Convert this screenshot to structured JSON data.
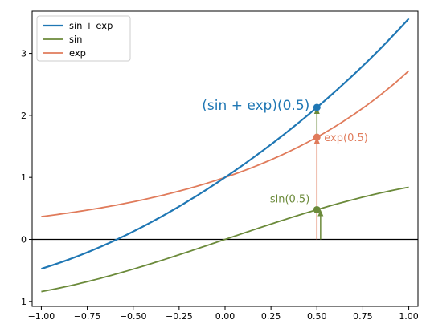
{
  "chart_data": {
    "type": "line",
    "title": "",
    "xlabel": "",
    "ylabel": "",
    "xlim": [
      -1.05,
      1.05
    ],
    "ylim": [
      -1.08,
      3.68
    ],
    "grid": false,
    "legend_position": "top-left",
    "x_ticks": [
      "−1.00",
      "−0.75",
      "−0.50",
      "−0.25",
      "0.00",
      "0.25",
      "0.50",
      "0.75",
      "1.00"
    ],
    "x_tick_values": [
      -1.0,
      -0.75,
      -0.5,
      -0.25,
      0.0,
      0.25,
      0.5,
      0.75,
      1.0
    ],
    "y_ticks": [
      "−1",
      "0",
      "1",
      "2",
      "3"
    ],
    "y_tick_values": [
      -1,
      0,
      1,
      2,
      3
    ],
    "series": [
      {
        "name": "sin + exp",
        "color": "#1f77b4",
        "x": [
          -1.0,
          -0.75,
          -0.5,
          -0.25,
          0.0,
          0.25,
          0.5,
          0.75,
          1.0
        ],
        "y": [
          -0.474,
          -0.209,
          0.127,
          0.531,
          1.0,
          1.532,
          2.128,
          2.799,
          3.56
        ]
      },
      {
        "name": "sin",
        "color": "#6b8a3a",
        "x": [
          -1.0,
          -0.75,
          -0.5,
          -0.25,
          0.0,
          0.25,
          0.5,
          0.75,
          1.0
        ],
        "y": [
          -0.841,
          -0.682,
          -0.479,
          -0.247,
          0.0,
          0.247,
          0.479,
          0.682,
          0.841
        ]
      },
      {
        "name": "exp",
        "color": "#e07b5b",
        "x": [
          -1.0,
          -0.75,
          -0.5,
          -0.25,
          0.0,
          0.25,
          0.5,
          0.75,
          1.0
        ],
        "y": [
          0.368,
          0.472,
          0.607,
          0.779,
          1.0,
          1.284,
          1.649,
          2.117,
          2.718
        ]
      }
    ],
    "horizontal_line": {
      "y": 0,
      "color": "#000000"
    },
    "points": [
      {
        "x": 0.5,
        "y": 2.128,
        "color": "#1f77b4"
      },
      {
        "x": 0.5,
        "y": 1.649,
        "color": "#e07b5b"
      },
      {
        "x": 0.5,
        "y": 0.479,
        "color": "#6b8a3a"
      }
    ],
    "arrows": [
      {
        "x": 0.5,
        "y_from": 0.0,
        "y_to": 1.649,
        "color": "#e07b5b"
      },
      {
        "x": 0.5,
        "y_from": 1.649,
        "y_to": 2.128,
        "color": "#6b8a3a"
      },
      {
        "x": 0.52,
        "y_from": 0.0,
        "y_to": 0.479,
        "color": "#6b8a3a"
      }
    ],
    "annotations": [
      {
        "text": "(sin + exp)(0.5)",
        "x": 0.5,
        "y": 2.128,
        "color": "#1f77b4",
        "anchor": "end",
        "size": 17
      },
      {
        "text": "exp(0.5)",
        "x": 0.5,
        "y": 1.649,
        "color": "#e07b5b",
        "anchor": "start",
        "size": 13
      },
      {
        "text": "sin(0.5)",
        "x": 0.5,
        "y": 0.479,
        "color": "#6b8a3a",
        "anchor": "end",
        "size": 13
      }
    ]
  }
}
